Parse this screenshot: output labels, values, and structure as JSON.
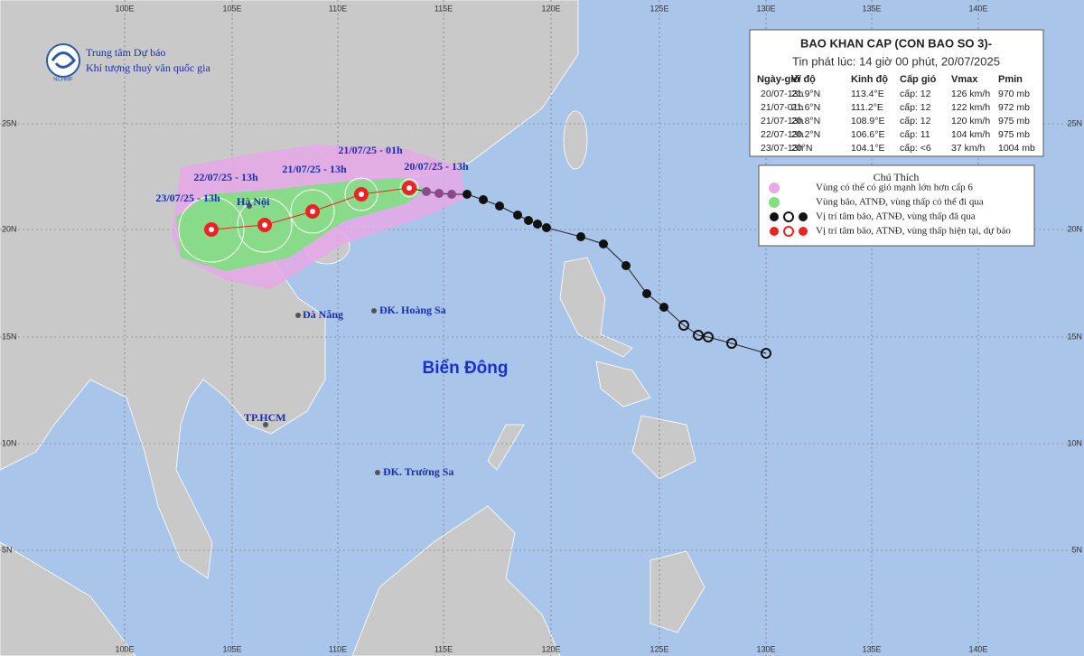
{
  "header": {
    "agency_line1": "Trung tâm Dự báo",
    "agency_line2": "Khí tượng thuỷ văn quốc gia",
    "logo_text": "NCHMF"
  },
  "bulletin": {
    "title": "BAO KHAN CAP (CON BAO SO 3)-",
    "issued": "Tin phát lúc: 14 giờ 00 phút, 20/07/2025",
    "columns": [
      "Ngày-giờ",
      "Vĩ độ",
      "Kinh độ",
      "Cấp gió",
      "Vmax",
      "Pmin"
    ],
    "rows": [
      [
        "20/07-13h",
        "21.9°N",
        "113.4°E",
        "cấp: 12",
        "126 km/h",
        "970 mb"
      ],
      [
        "21/07-01h",
        "21.6°N",
        "111.2°E",
        "cấp: 12",
        "122 km/h",
        "972 mb"
      ],
      [
        "21/07-13h",
        "20.8°N",
        "108.9°E",
        "cấp: 12",
        "120 km/h",
        "975 mb"
      ],
      [
        "22/07-13h",
        "20.2°N",
        "106.6°E",
        "cấp: 11",
        "104 km/h",
        "975 mb"
      ],
      [
        "23/07-13h",
        "20°N",
        "104.1°E",
        "cấp: <6",
        "37 km/h",
        "1004 mb"
      ]
    ]
  },
  "legend": {
    "title": "Chú Thích",
    "items": [
      "Vùng có thể có gió mạnh lớn hơn cấp 6",
      "Vùng bão, ATNĐ, vùng thấp có thể đi qua",
      "Vị trí tâm bão, ATNĐ, vùng thấp đã qua",
      "Vị trí tâm bão, ATNĐ, vùng thấp hiện tại, dự báo"
    ]
  },
  "map": {
    "longitude_labels": [
      "100E",
      "105E",
      "110E",
      "115E",
      "120E",
      "125E",
      "130E",
      "135E",
      "140E"
    ],
    "latitude_labels": [
      "25N",
      "20N",
      "15N",
      "10N",
      "5N"
    ],
    "forecast_labels": [
      "21/07/25 - 01h",
      "20/07/25 - 13h",
      "21/07/25 - 13h",
      "22/07/25 - 13h",
      "23/07/25 - 13h"
    ],
    "places": [
      "Hà Nội",
      "Đà Nẵng",
      "ĐK. Hoàng Sa",
      "TP.HCM",
      "ĐK. Trường Sa"
    ],
    "sea_label": "Biển Đông"
  }
}
